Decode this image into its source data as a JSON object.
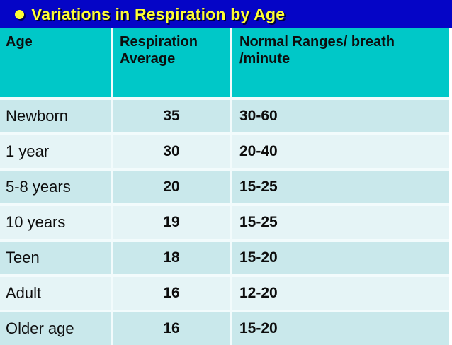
{
  "slide": {
    "title": "Variations in Respiration by Age",
    "bullet_icon": "filled-circle"
  },
  "colors": {
    "title_bar_bg": "#0505c6",
    "title_text": "#ffff33",
    "header_bg": "#00c8c8",
    "row_odd_bg": "#c9e8eb",
    "row_even_bg": "#e5f4f6",
    "separator": "#f2fbfc",
    "body_text": "#0d0d0d"
  },
  "table": {
    "headers": [
      {
        "label": "Age"
      },
      {
        "label": "Respiration\nAverage"
      },
      {
        "label": "Normal Ranges/ breath\n/minute"
      }
    ],
    "rows": [
      {
        "age": "Newborn",
        "average": "35",
        "range": "30-60"
      },
      {
        "age": "1 year",
        "average": "30",
        "range": "20-40"
      },
      {
        "age": "5-8 years",
        "average": "20",
        "range": "15-25"
      },
      {
        "age": "10 years",
        "average": "19",
        "range": "15-25"
      },
      {
        "age": "Teen",
        "average": "18",
        "range": "15-20"
      },
      {
        "age": "Adult",
        "average": "16",
        "range": "12-20"
      },
      {
        "age": "Older age",
        "average": "16",
        "range": "15-20"
      }
    ]
  },
  "chart_data": {
    "type": "table",
    "title": "Variations in Respiration by Age",
    "columns": [
      "Age",
      "Respiration Average",
      "Normal Ranges/ breath /minute"
    ],
    "rows": [
      [
        "Newborn",
        35,
        "30-60"
      ],
      [
        "1 year",
        30,
        "20-40"
      ],
      [
        "5-8 years",
        20,
        "15-25"
      ],
      [
        "10 years",
        19,
        "15-25"
      ],
      [
        "Teen",
        18,
        "15-20"
      ],
      [
        "Adult",
        16,
        "12-20"
      ],
      [
        "Older age",
        16,
        "15-20"
      ]
    ]
  }
}
